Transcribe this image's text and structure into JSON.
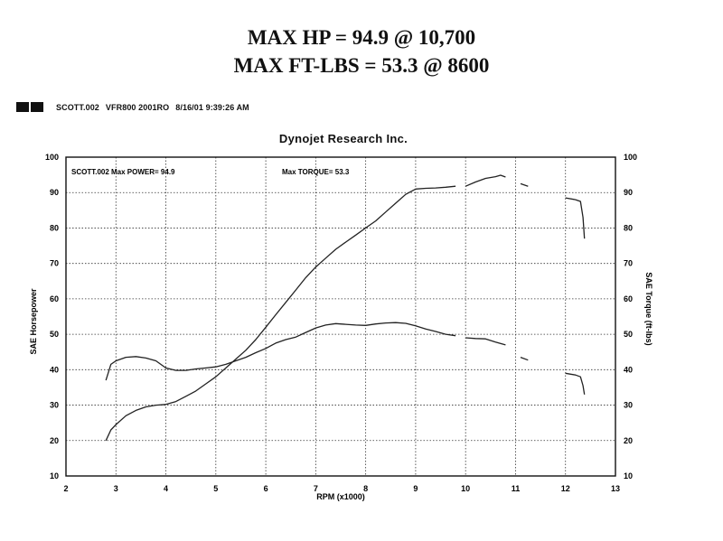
{
  "headlines": {
    "max_hp": "MAX HP = 94.9 @ 10,700",
    "max_torque": "MAX FT-LBS = 53.3 @ 8600"
  },
  "run_info": {
    "filename": "SCOTT.002",
    "vehicle": "VFR800 2001RO",
    "datetime": "8/16/01 9:39:26 AM"
  },
  "company": "Dynojet Research Inc.",
  "chart_data": {
    "type": "line",
    "xlabel": "RPM (x1000)",
    "ylabel": "SAE Horsepower",
    "y2label": "SAE Torque (ft-lbs)",
    "xlim": [
      2,
      13
    ],
    "ylim": [
      10,
      100
    ],
    "y2lim": [
      10,
      100
    ],
    "x_ticks": [
      2,
      3,
      4,
      5,
      6,
      7,
      8,
      9,
      10,
      11,
      12,
      13
    ],
    "y_ticks": [
      10,
      20,
      30,
      40,
      50,
      60,
      70,
      80,
      90,
      100
    ],
    "y2_ticks": [
      10,
      20,
      30,
      40,
      50,
      60,
      70,
      80,
      90,
      100
    ],
    "grid": true,
    "legend": "none",
    "annotations": {
      "power_label": "SCOTT.002  Max POWER= 94.9",
      "torque_label": "Max TORQUE= 53.3"
    },
    "series": [
      {
        "axis": "left",
        "segments": [
          [
            [
              2.8,
              20
            ],
            [
              2.9,
              23
            ],
            [
              3.0,
              24.5
            ],
            [
              3.2,
              27
            ],
            [
              3.4,
              28.5
            ],
            [
              3.6,
              29.5
            ],
            [
              3.8,
              30
            ],
            [
              4.0,
              30.2
            ],
            [
              4.2,
              31
            ],
            [
              4.4,
              32.5
            ],
            [
              4.6,
              34
            ],
            [
              4.8,
              36
            ],
            [
              5.0,
              38
            ],
            [
              5.2,
              40.5
            ],
            [
              5.4,
              43
            ],
            [
              5.6,
              45.5
            ],
            [
              5.8,
              48.5
            ],
            [
              6.0,
              52
            ],
            [
              6.2,
              55.5
            ],
            [
              6.4,
              59
            ],
            [
              6.6,
              62.5
            ],
            [
              6.8,
              66
            ],
            [
              7.0,
              69
            ],
            [
              7.2,
              71.5
            ],
            [
              7.4,
              74
            ],
            [
              7.6,
              76
            ],
            [
              7.8,
              78
            ],
            [
              8.0,
              80
            ],
            [
              8.2,
              82
            ],
            [
              8.4,
              84.5
            ],
            [
              8.6,
              87
            ],
            [
              8.8,
              89.5
            ],
            [
              9.0,
              91
            ],
            [
              9.2,
              91.2
            ],
            [
              9.4,
              91.3
            ],
            [
              9.6,
              91.5
            ],
            [
              9.8,
              91.8
            ]
          ],
          [
            [
              10.0,
              91.8
            ],
            [
              10.2,
              93
            ],
            [
              10.4,
              94
            ],
            [
              10.6,
              94.5
            ],
            [
              10.7,
              94.9
            ],
            [
              10.8,
              94.4
            ]
          ],
          [
            [
              11.1,
              92.5
            ],
            [
              11.25,
              91.8
            ]
          ],
          [
            [
              12.0,
              88.5
            ],
            [
              12.2,
              88
            ],
            [
              12.3,
              87.5
            ],
            [
              12.35,
              83
            ],
            [
              12.38,
              77
            ]
          ]
        ]
      },
      {
        "axis": "right",
        "segments": [
          [
            [
              2.8,
              37
            ],
            [
              2.9,
              41.5
            ],
            [
              3.0,
              42.5
            ],
            [
              3.2,
              43.5
            ],
            [
              3.4,
              43.7
            ],
            [
              3.6,
              43.3
            ],
            [
              3.8,
              42.5
            ],
            [
              4.0,
              40.5
            ],
            [
              4.2,
              39.8
            ],
            [
              4.4,
              39.8
            ],
            [
              4.6,
              40.2
            ],
            [
              4.8,
              40.5
            ],
            [
              5.0,
              40.8
            ],
            [
              5.2,
              41.5
            ],
            [
              5.4,
              42.5
            ],
            [
              5.6,
              43.5
            ],
            [
              5.8,
              44.8
            ],
            [
              6.0,
              46
            ],
            [
              6.2,
              47.5
            ],
            [
              6.4,
              48.5
            ],
            [
              6.6,
              49.2
            ],
            [
              6.8,
              50.5
            ],
            [
              7.0,
              51.8
            ],
            [
              7.2,
              52.6
            ],
            [
              7.4,
              53
            ],
            [
              7.6,
              52.8
            ],
            [
              7.8,
              52.6
            ],
            [
              8.0,
              52.5
            ],
            [
              8.2,
              52.9
            ],
            [
              8.4,
              53.2
            ],
            [
              8.6,
              53.3
            ],
            [
              8.8,
              53.1
            ],
            [
              9.0,
              52.4
            ],
            [
              9.2,
              51.5
            ],
            [
              9.4,
              50.8
            ],
            [
              9.6,
              50
            ],
            [
              9.8,
              49.6
            ]
          ],
          [
            [
              10.0,
              49
            ],
            [
              10.2,
              48.8
            ],
            [
              10.4,
              48.7
            ],
            [
              10.6,
              47.8
            ],
            [
              10.8,
              47
            ]
          ],
          [
            [
              11.1,
              43.5
            ],
            [
              11.25,
              42.7
            ]
          ],
          [
            [
              12.0,
              39
            ],
            [
              12.2,
              38.5
            ],
            [
              12.3,
              38
            ],
            [
              12.35,
              35.5
            ],
            [
              12.38,
              33
            ]
          ]
        ]
      }
    ]
  }
}
